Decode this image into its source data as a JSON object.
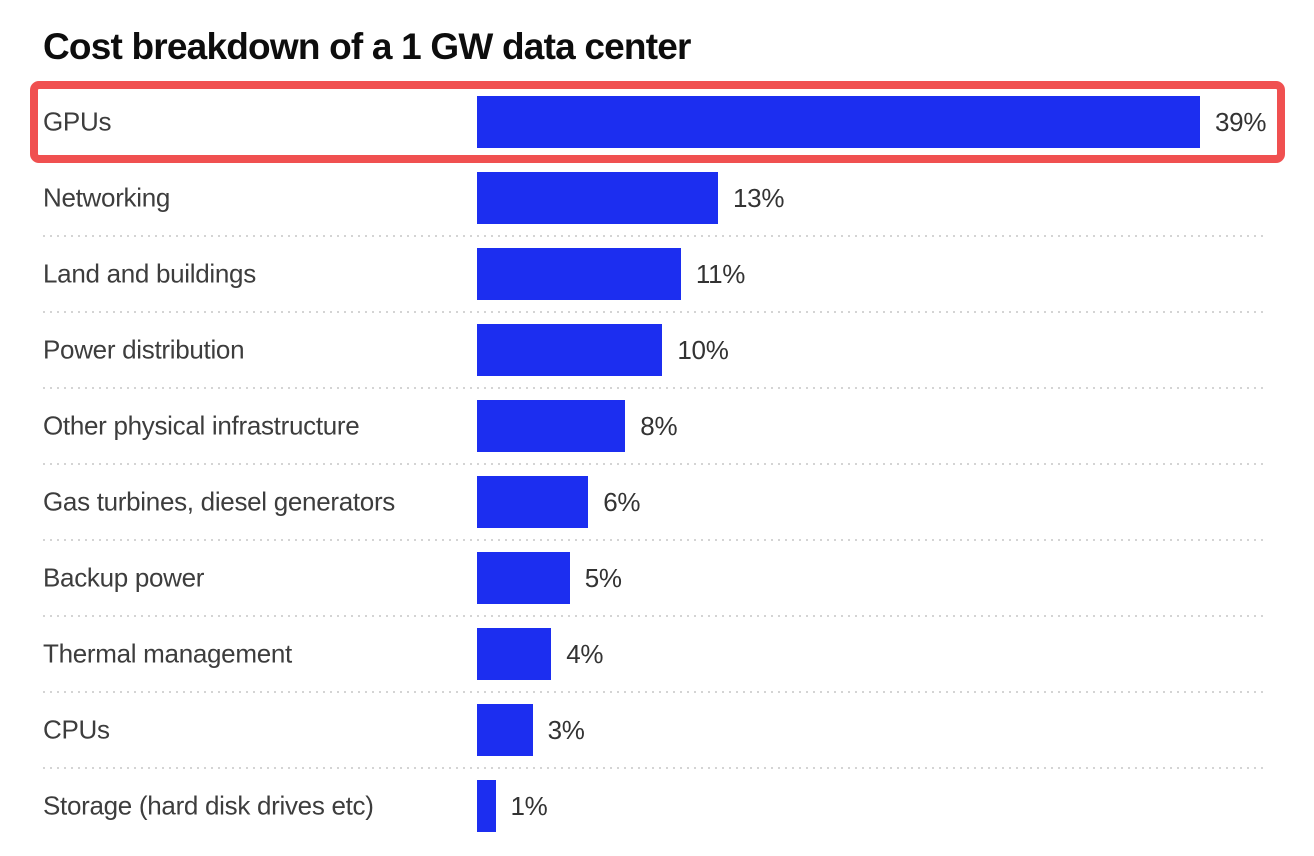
{
  "chart_data": {
    "type": "bar",
    "orientation": "horizontal",
    "title": "Cost breakdown of a 1 GW data center",
    "unit": "%",
    "categories": [
      "GPUs",
      "Networking",
      "Land and buildings",
      "Power distribution",
      "Other physical infrastructure",
      "Gas turbines, diesel generators",
      "Backup power",
      "Thermal management",
      "CPUs",
      "Storage (hard disk drives etc)"
    ],
    "values": [
      39,
      13,
      11,
      10,
      8,
      6,
      5,
      4,
      3,
      1
    ],
    "value_labels": [
      "39%",
      "13%",
      "11%",
      "10%",
      "8%",
      "6%",
      "5%",
      "4%",
      "3%",
      "1%"
    ],
    "xlim": [
      0,
      39
    ],
    "grid": false,
    "legend": false
  },
  "annotation": {
    "type": "highlight-box",
    "target_row": "GPUs",
    "target_index": 0,
    "color": "#f05050"
  },
  "colors": {
    "background": "#ffffff",
    "bar": "#1c2ef0",
    "title_text": "#0d0d0d",
    "label_text": "#3d3d3d",
    "value_text": "#333333",
    "divider": "#d4d4d4",
    "highlight": "#f05050"
  }
}
